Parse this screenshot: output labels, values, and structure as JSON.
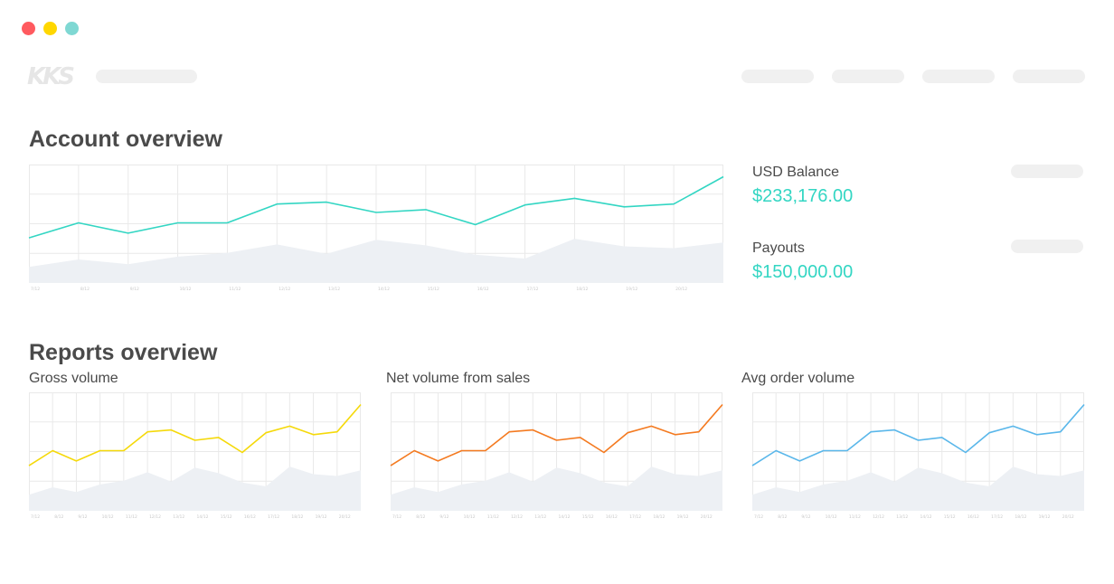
{
  "window": {
    "controls": [
      {
        "name": "close",
        "color": "#ff5a5f"
      },
      {
        "name": "minimize",
        "color": "#ffd700"
      },
      {
        "name": "maximize",
        "color": "#7fd8d3"
      }
    ]
  },
  "header": {
    "logo_text": "KKS"
  },
  "account_overview": {
    "title": "Account overview",
    "balances": [
      {
        "label": "USD Balance",
        "value": "$233,176.00"
      },
      {
        "label": "Payouts",
        "value": "$150,000.00"
      }
    ]
  },
  "reports_overview": {
    "title": "Reports overview",
    "reports": [
      {
        "label": "Gross volume"
      },
      {
        "label": "Net volume from sales"
      },
      {
        "label": "Avg order volume"
      }
    ]
  },
  "colors": {
    "teal": "#33d6c3",
    "yellow": "#f5d90a",
    "orange": "#f47a20",
    "blue": "#5ab7ea",
    "area": "#edf0f4",
    "grid": "#e9e9e9"
  },
  "chart_data": [
    {
      "id": "account-chart",
      "type": "line",
      "title": "Account overview",
      "color_key": "teal",
      "categories": [
        "7/12",
        "8/12",
        "9/12",
        "10/12",
        "11/12",
        "12/12",
        "13/12",
        "14/12",
        "15/12",
        "16/12",
        "17/12",
        "18/12",
        "19/12",
        "20/12",
        ""
      ],
      "series": [
        {
          "name": "line",
          "values": [
            48,
            64,
            53,
            64,
            64,
            84,
            86,
            75,
            78,
            62,
            83,
            90,
            81,
            84,
            113
          ]
        },
        {
          "name": "area",
          "values": [
            17,
            25,
            20,
            28,
            32,
            41,
            31,
            46,
            40,
            30,
            26,
            47,
            39,
            37,
            43
          ]
        }
      ],
      "ylim": [
        0,
        126
      ]
    },
    {
      "id": "gross-volume-chart",
      "type": "line",
      "title": "Gross volume",
      "color_key": "yellow",
      "categories": [
        "7/12",
        "8/12",
        "9/12",
        "10/12",
        "11/12",
        "12/12",
        "13/12",
        "14/12",
        "15/12",
        "16/12",
        "17/12",
        "18/12",
        "19/12",
        "20/12",
        ""
      ],
      "series": [
        {
          "name": "line",
          "values": [
            48,
            64,
            53,
            64,
            64,
            84,
            86,
            75,
            78,
            62,
            83,
            90,
            81,
            84,
            113
          ]
        },
        {
          "name": "area",
          "values": [
            17,
            25,
            20,
            28,
            32,
            41,
            31,
            46,
            40,
            30,
            26,
            47,
            39,
            37,
            43
          ]
        }
      ],
      "ylim": [
        0,
        126
      ]
    },
    {
      "id": "net-volume-chart",
      "type": "line",
      "title": "Net volume from sales",
      "color_key": "orange",
      "categories": [
        "7/12",
        "8/12",
        "9/12",
        "10/12",
        "11/12",
        "12/12",
        "13/12",
        "14/12",
        "15/12",
        "16/12",
        "17/12",
        "18/12",
        "19/12",
        "20/12",
        ""
      ],
      "series": [
        {
          "name": "line",
          "values": [
            48,
            64,
            53,
            64,
            64,
            84,
            86,
            75,
            78,
            62,
            83,
            90,
            81,
            84,
            113
          ]
        },
        {
          "name": "area",
          "values": [
            17,
            25,
            20,
            28,
            32,
            41,
            31,
            46,
            40,
            30,
            26,
            47,
            39,
            37,
            43
          ]
        }
      ],
      "ylim": [
        0,
        126
      ]
    },
    {
      "id": "avg-order-chart",
      "type": "line",
      "title": "Avg order volume",
      "color_key": "blue",
      "categories": [
        "7/12",
        "8/12",
        "9/12",
        "10/12",
        "11/12",
        "12/12",
        "13/12",
        "14/12",
        "15/12",
        "16/12",
        "17/12",
        "18/12",
        "19/12",
        "20/12",
        ""
      ],
      "series": [
        {
          "name": "line",
          "values": [
            48,
            64,
            53,
            64,
            64,
            84,
            86,
            75,
            78,
            62,
            83,
            90,
            81,
            84,
            113
          ]
        },
        {
          "name": "area",
          "values": [
            17,
            25,
            20,
            28,
            32,
            41,
            31,
            46,
            40,
            30,
            26,
            47,
            39,
            37,
            43
          ]
        }
      ],
      "ylim": [
        0,
        126
      ]
    }
  ]
}
